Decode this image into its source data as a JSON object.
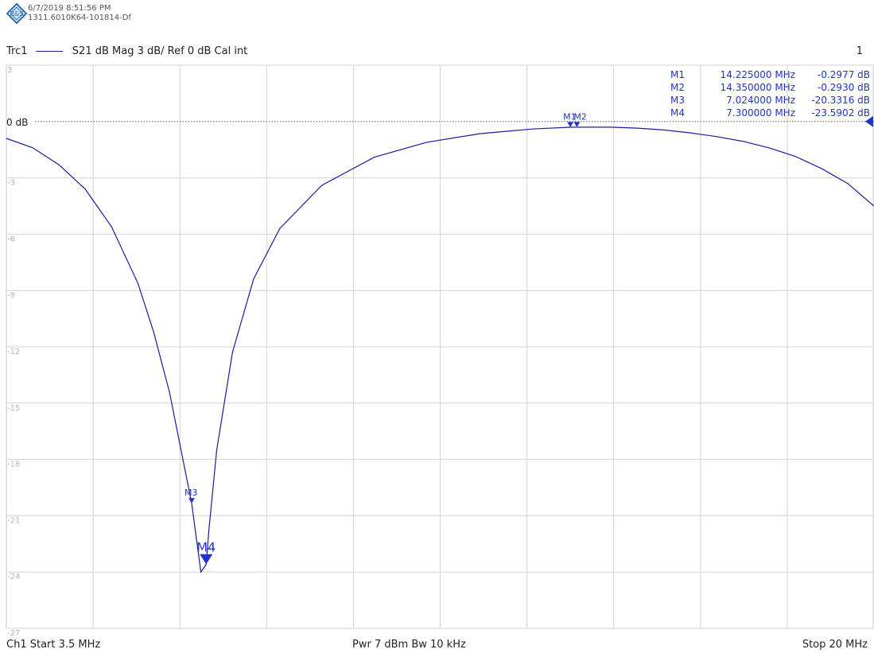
{
  "header": {
    "logo_text": "R&S",
    "timestamp": "6/7/2019 8:51:56 PM",
    "instrument_id": "1311.6010K64-101814-Df"
  },
  "trace": {
    "name": "Trc1",
    "description": "S21  dB Mag  3 dB/ Ref 0 dB  Cal int",
    "color": "#1a1aa0"
  },
  "channel_number": "1",
  "ref_label": "0 dB",
  "footer": {
    "start": "Ch1  Start  3.5 MHz",
    "center": "Pwr  7 dBm  Bw  10 kHz",
    "stop": "Stop  20 MHz"
  },
  "marker_table": [
    {
      "name": "M1",
      "freq": "14.225000  MHz",
      "value": "-0.2977  dB"
    },
    {
      "name": "M2",
      "freq": "14.350000  MHz",
      "value": "-0.2930  dB"
    },
    {
      "name": "M3",
      "freq": "7.024000  MHz",
      "value": "-20.3316  dB"
    },
    {
      "name": "M4",
      "freq": "7.300000  MHz",
      "value": "-23.5902  dB"
    }
  ],
  "chart_data": {
    "type": "line",
    "title": "",
    "xlabel": "",
    "ylabel": "",
    "xlim": [
      3.5,
      20
    ],
    "ylim": [
      -27,
      3
    ],
    "yticks": [
      3,
      -3,
      -6,
      -9,
      -12,
      -15,
      -18,
      -21,
      -24,
      -27
    ],
    "grid": true,
    "series": [
      {
        "name": "Trc1",
        "x": [
          3.5,
          4.0,
          4.5,
          5.0,
          5.5,
          6.0,
          6.3,
          6.6,
          6.9,
          7.024,
          7.2,
          7.3,
          7.35,
          7.5,
          7.8,
          8.2,
          8.7,
          9.5,
          10.5,
          11.5,
          12.5,
          13.5,
          14.25,
          15.0,
          15.5,
          16.0,
          16.5,
          17.0,
          17.5,
          18.0,
          18.5,
          19.0,
          19.5,
          20.0
        ],
        "y": [
          -0.9,
          -1.4,
          -2.3,
          -3.6,
          -5.6,
          -8.6,
          -11.2,
          -14.4,
          -18.6,
          -20.33,
          -24.0,
          -23.59,
          -21.8,
          -17.5,
          -12.3,
          -8.4,
          -5.7,
          -3.4,
          -1.9,
          -1.1,
          -0.65,
          -0.4,
          -0.3,
          -0.3,
          -0.35,
          -0.45,
          -0.6,
          -0.8,
          -1.05,
          -1.4,
          -1.85,
          -2.5,
          -3.3,
          -4.5
        ]
      }
    ],
    "markers": [
      {
        "name": "M1",
        "x": 14.225,
        "y": -0.2977
      },
      {
        "name": "M2",
        "x": 14.35,
        "y": -0.293
      },
      {
        "name": "M3",
        "x": 7.024,
        "y": -20.3316
      },
      {
        "name": "M4",
        "x": 7.3,
        "y": -23.5902
      }
    ],
    "reference_line_y": 0
  }
}
